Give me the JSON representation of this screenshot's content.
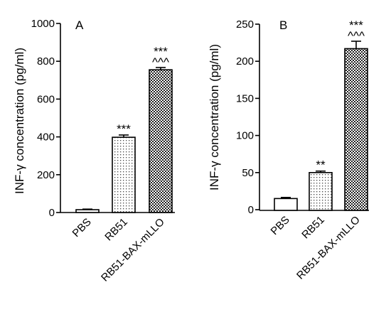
{
  "chart_data": [
    {
      "type": "bar",
      "panel_label": "A",
      "ylabel": "INF-γ concentration (pg/ml)",
      "xlabel": "",
      "ylim": [
        0,
        1000
      ],
      "yticks": [
        0,
        200,
        400,
        600,
        800,
        1000
      ],
      "ytick_labels": [
        "0",
        "200",
        "400",
        "600",
        "800",
        "1000"
      ],
      "categories": [
        "PBS",
        "RB51",
        "RB51-BAX-mLLO"
      ],
      "values": [
        15,
        398,
        755
      ],
      "errors": [
        3,
        12,
        12
      ],
      "significance": [
        "",
        "***",
        "***"
      ],
      "significance2": [
        "",
        "",
        "^^^"
      ],
      "patterns": [
        "none",
        "dots-sparse",
        "checker"
      ],
      "grid": false
    },
    {
      "type": "bar",
      "panel_label": "B",
      "ylabel": "INF-γ concentration (pg/ml)",
      "xlabel": "",
      "ylim": [
        0,
        250
      ],
      "yticks": [
        0,
        50,
        100,
        150,
        200,
        250
      ],
      "ytick_labels": [
        "0",
        "50",
        "100",
        "150",
        "200",
        "250"
      ],
      "categories": [
        "PBS",
        "RB51",
        "RB51-BAX-mLLO"
      ],
      "values": [
        15,
        50,
        217
      ],
      "errors": [
        1.5,
        2,
        10
      ],
      "significance": [
        "",
        "**",
        "***"
      ],
      "significance2": [
        "",
        "",
        "^^^"
      ],
      "patterns": [
        "none",
        "dots-sparse",
        "checker"
      ],
      "grid": false
    }
  ]
}
